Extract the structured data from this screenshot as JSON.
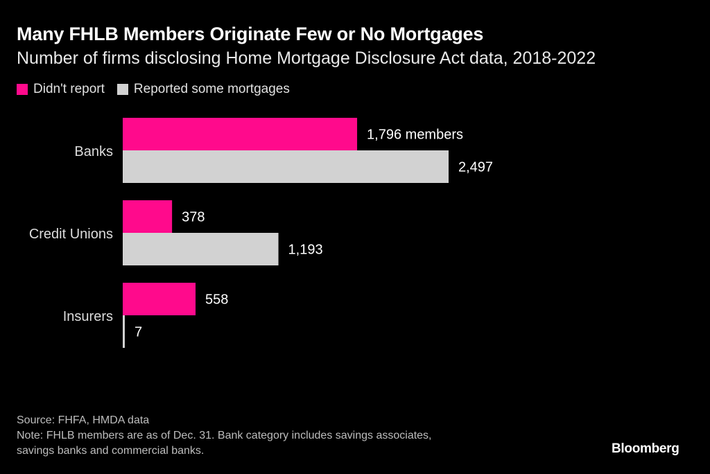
{
  "header": {
    "title": "Many FHLB Members Originate Few or No Mortgages",
    "subtitle": "Number of firms disclosing Home Mortgage Disclosure Act data, 2018-2022"
  },
  "legend": [
    {
      "label": "Didn't report",
      "color": "#ff0a8c"
    },
    {
      "label": "Reported some mortgages",
      "color": "#d2d2d2"
    }
  ],
  "chart_data": {
    "type": "bar",
    "orientation": "horizontal",
    "categories": [
      "Banks",
      "Credit Unions",
      "Insurers"
    ],
    "series": [
      {
        "name": "Didn't report",
        "values": [
          1796,
          378,
          558
        ],
        "labels": [
          "1,796 members",
          "378",
          "558"
        ],
        "color": "#ff0a8c"
      },
      {
        "name": "Reported some mortgages",
        "values": [
          2497,
          1193,
          7
        ],
        "labels": [
          "2,497",
          "1,193",
          "7"
        ],
        "color": "#d2d2d2"
      }
    ],
    "xlim": [
      0,
      2497
    ],
    "grid": false,
    "legend": "top-left"
  },
  "footer": {
    "source": "Source: FHFA, HMDA data",
    "note_line1": "Note: FHLB members are as of Dec. 31. Bank category includes savings associates,",
    "note_line2": "savings banks and commercial banks.",
    "logo": "Bloomberg"
  }
}
